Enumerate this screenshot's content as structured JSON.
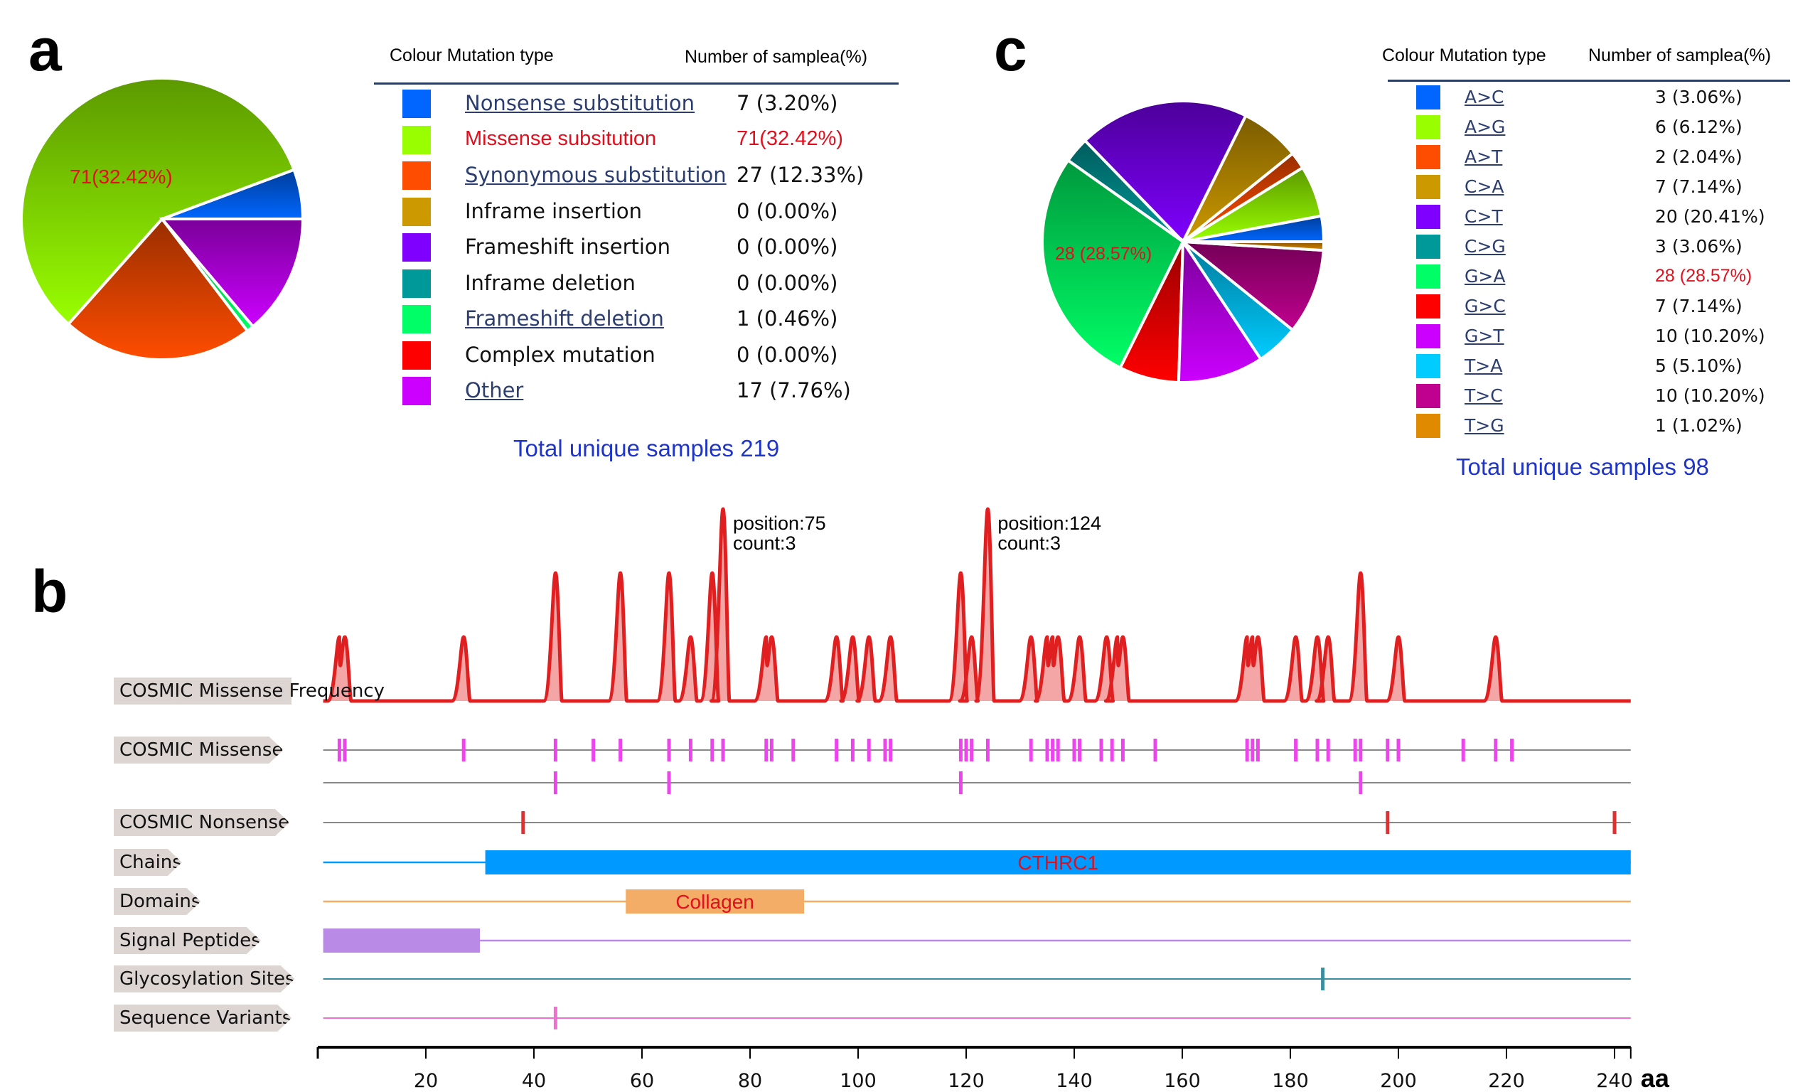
{
  "panels": {
    "a": "a",
    "b": "b",
    "c": "c"
  },
  "chart_data": [
    {
      "id": "a",
      "type": "pie",
      "title": "",
      "legend": {
        "header_type": "Colour Mutation type",
        "header_count": "Number of samplea(%)"
      },
      "slice_label": "71(32.42%)",
      "categories": [
        "Nonsense substitution",
        "Missense subsitution",
        "Synonymous substitution",
        "Inframe insertion",
        "Frameshift insertion",
        "Inframe deletion",
        "Frameshift deletion",
        "Complex mutation",
        "Other"
      ],
      "values": [
        7,
        71,
        27,
        0,
        0,
        0,
        1,
        0,
        17
      ],
      "value_labels": [
        "7 (3.20%)",
        "71(32.42%)",
        "27 (12.33%)",
        "0 (0.00%)",
        "0 (0.00%)",
        "0 (0.00%)",
        "1 (0.46%)",
        "0 (0.00%)",
        "17 (7.76%)"
      ],
      "colors": [
        "#0066ff",
        "#99ff00",
        "#ff4d00",
        "#cc9900",
        "#7f00ff",
        "#009999",
        "#00ff66",
        "#ff0000",
        "#cc00ff"
      ],
      "linked": [
        true,
        false,
        true,
        false,
        false,
        false,
        true,
        false,
        true
      ],
      "highlight_index": 1,
      "total": "Total unique samples 219"
    },
    {
      "id": "c",
      "type": "pie",
      "title": "",
      "legend": {
        "header_type": "Colour Mutation type",
        "header_count": "Number of samplea(%)"
      },
      "slice_label": "28 (28.57%)",
      "categories": [
        "A>C",
        "A>G",
        "A>T",
        "C>A",
        "C>T",
        "C>G",
        "G>A",
        "G>C",
        "G>T",
        "T>A",
        "T>C",
        "T>G"
      ],
      "values": [
        3,
        6,
        2,
        7,
        20,
        3,
        28,
        7,
        10,
        5,
        10,
        1
      ],
      "value_labels": [
        "3 (3.06%)",
        "6 (6.12%)",
        "2 (2.04%)",
        "7 (7.14%)",
        "20 (20.41%)",
        "3 (3.06%)",
        "28 (28.57%)",
        "7 (7.14%)",
        "10 (10.20%)",
        "5 (5.10%)",
        "10 (10.20%)",
        "1 (1.02%)"
      ],
      "colors": [
        "#0066ff",
        "#99ff00",
        "#ff4d00",
        "#cc9900",
        "#7f00ff",
        "#009999",
        "#00ff66",
        "#ff0000",
        "#cc00ff",
        "#00ccff",
        "#c0008f",
        "#e08a00"
      ],
      "highlight_index": 6,
      "total": "Total unique samples 98"
    },
    {
      "id": "b",
      "type": "line",
      "xlabel": "aa",
      "xlim": [
        0,
        243
      ],
      "xticks": [
        20,
        40,
        60,
        80,
        100,
        120,
        140,
        160,
        180,
        200,
        220,
        240
      ],
      "frequency": {
        "label": "COSMIC Missense Frequency",
        "points": [
          [
            4,
            1
          ],
          [
            5,
            1
          ],
          [
            27,
            1
          ],
          [
            44,
            2
          ],
          [
            56,
            2
          ],
          [
            65,
            2
          ],
          [
            69,
            1
          ],
          [
            73,
            2
          ],
          [
            75,
            3
          ],
          [
            83,
            1
          ],
          [
            84,
            1
          ],
          [
            96,
            1
          ],
          [
            99,
            1
          ],
          [
            102,
            1
          ],
          [
            106,
            1
          ],
          [
            119,
            2
          ],
          [
            121,
            1
          ],
          [
            124,
            3
          ],
          [
            132,
            1
          ],
          [
            135,
            1
          ],
          [
            136,
            1
          ],
          [
            137,
            1
          ],
          [
            141,
            1
          ],
          [
            146,
            1
          ],
          [
            148,
            1
          ],
          [
            149,
            1
          ],
          [
            172,
            1
          ],
          [
            173,
            1
          ],
          [
            174,
            1
          ],
          [
            181,
            1
          ],
          [
            185,
            1
          ],
          [
            187,
            1
          ],
          [
            193,
            2
          ],
          [
            200,
            1
          ],
          [
            218,
            1
          ]
        ],
        "annotations": [
          {
            "position": 75,
            "lines": [
              "position:75",
              "count:3"
            ]
          },
          {
            "position": 124,
            "lines": [
              "position:124",
              "count:3"
            ]
          }
        ],
        "color": "#e02020"
      },
      "tracks": [
        {
          "label": "COSMIC Missense",
          "kind": "ticks",
          "color": "#ee44ee",
          "rows": [
            [
              4,
              5,
              27,
              44,
              51,
              56,
              65,
              69,
              73,
              75,
              83,
              84,
              88,
              96,
              99,
              102,
              105,
              106,
              119,
              120,
              121,
              124,
              132,
              135,
              136,
              137,
              140,
              141,
              145,
              147,
              149,
              155,
              172,
              173,
              174,
              181,
              185,
              187,
              192,
              193,
              198,
              200,
              212,
              218,
              221
            ],
            [
              44,
              65,
              119,
              193
            ]
          ]
        },
        {
          "label": "COSMIC Nonsense",
          "kind": "ticks",
          "color": "#e03030",
          "rows": [
            [
              38,
              198,
              240
            ]
          ]
        },
        {
          "label": "Chains",
          "kind": "bar",
          "color": "#0099ff",
          "start": 31,
          "end": 243,
          "text": "CTHRC1"
        },
        {
          "label": "Domains",
          "kind": "bar",
          "color": "#f4ad66",
          "start": 57,
          "end": 90,
          "text": "Collagen"
        },
        {
          "label": "Signal Peptides",
          "kind": "bar",
          "color": "#b98ae6",
          "start": 1,
          "end": 30,
          "text": ""
        },
        {
          "label": "Glycosylation Sites",
          "kind": "ticks",
          "color": "#3a8ea0",
          "rows": [
            [
              186
            ]
          ]
        },
        {
          "label": "Sequence Variants",
          "kind": "ticks",
          "color": "#f070d0",
          "rows": [
            [
              44
            ]
          ]
        }
      ]
    }
  ]
}
